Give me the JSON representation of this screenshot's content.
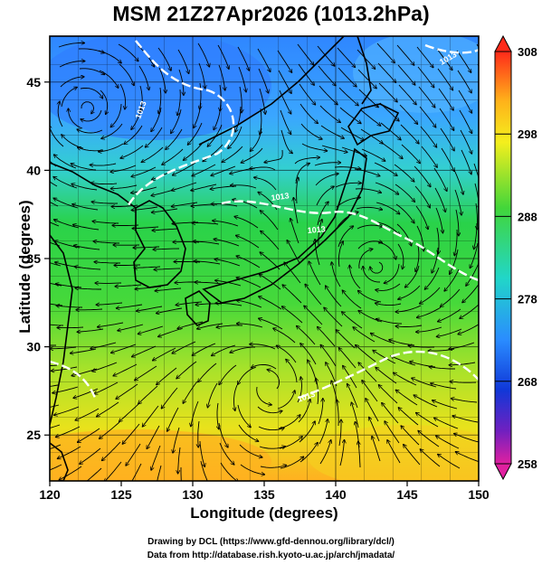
{
  "title": "MSM 21Z27Apr2026 (1013.2hPa)",
  "xaxis": {
    "label": "Longitude (degrees)",
    "ticks": [
      "120",
      "125",
      "130",
      "135",
      "140",
      "145",
      "150"
    ]
  },
  "yaxis": {
    "label": "Latitude  (degrees)",
    "ticks": [
      "25",
      "30",
      "35",
      "40",
      "45"
    ]
  },
  "colorbar": {
    "ticks": [
      "308",
      "298",
      "288",
      "278",
      "268",
      "258"
    ]
  },
  "contour_labels": [
    "1013",
    "1013",
    "1013",
    "1013",
    "1013"
  ],
  "credits": {
    "line1": "Drawing by DCL (https://www.gfd-dennou.org/library/dcl/)",
    "line2": "Data from http://database.rish.kyoto-u.ac.jp/arch/jmadata/"
  },
  "colors": {
    "cold": "#3ea0ff",
    "mid": "#2fd24a",
    "warm": "#ffb020",
    "contour": "#ffffff",
    "coast": "#000000"
  }
}
